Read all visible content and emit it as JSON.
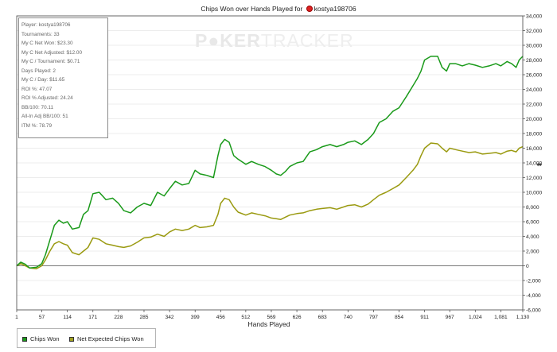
{
  "chart_data": {
    "type": "line",
    "title_prefix": "Chips Won over Hands Played for",
    "player_name": "kostya198706",
    "xlabel": "Hands Played",
    "ylabel": "",
    "xlim": [
      1,
      1130
    ],
    "ylim": [
      -6000,
      34000
    ],
    "x_ticks": [
      "1",
      "57",
      "114",
      "171",
      "228",
      "285",
      "342",
      "399",
      "456",
      "512",
      "569",
      "626",
      "683",
      "740",
      "797",
      "854",
      "911",
      "967",
      "1,024",
      "1,081",
      "1,130"
    ],
    "y_ticks": [
      "-6,000",
      "-4,000",
      "-2,000",
      "0",
      "2,000",
      "4,000",
      "6,000",
      "8,000",
      "10,000",
      "12,000",
      "14,000",
      "16,000",
      "18,000",
      "20,000",
      "22,000",
      "24,000",
      "26,000",
      "28,000",
      "30,000",
      "32,000",
      "34,000"
    ],
    "grid": "horizontal-only",
    "legend_position": "bottom-left",
    "series": [
      {
        "name": "Chips Won",
        "color": "#1a9a1a",
        "points": [
          [
            1,
            0
          ],
          [
            10,
            500
          ],
          [
            20,
            200
          ],
          [
            30,
            -300
          ],
          [
            45,
            -200
          ],
          [
            57,
            300
          ],
          [
            65,
            1500
          ],
          [
            75,
            3500
          ],
          [
            85,
            5500
          ],
          [
            95,
            6200
          ],
          [
            105,
            5800
          ],
          [
            114,
            6000
          ],
          [
            125,
            5000
          ],
          [
            140,
            5200
          ],
          [
            150,
            7000
          ],
          [
            160,
            7500
          ],
          [
            171,
            9800
          ],
          [
            185,
            10000
          ],
          [
            200,
            9000
          ],
          [
            215,
            9200
          ],
          [
            228,
            8500
          ],
          [
            240,
            7500
          ],
          [
            255,
            7200
          ],
          [
            270,
            8000
          ],
          [
            285,
            8500
          ],
          [
            300,
            8200
          ],
          [
            315,
            10000
          ],
          [
            330,
            9500
          ],
          [
            342,
            10500
          ],
          [
            355,
            11500
          ],
          [
            370,
            11000
          ],
          [
            385,
            11200
          ],
          [
            399,
            13000
          ],
          [
            410,
            12500
          ],
          [
            425,
            12300
          ],
          [
            440,
            12000
          ],
          [
            450,
            15000
          ],
          [
            456,
            16500
          ],
          [
            465,
            17200
          ],
          [
            475,
            16800
          ],
          [
            485,
            15000
          ],
          [
            495,
            14500
          ],
          [
            512,
            13800
          ],
          [
            525,
            14200
          ],
          [
            540,
            13800
          ],
          [
            555,
            13500
          ],
          [
            569,
            13000
          ],
          [
            580,
            12500
          ],
          [
            590,
            12300
          ],
          [
            600,
            12800
          ],
          [
            610,
            13500
          ],
          [
            626,
            14000
          ],
          [
            640,
            14200
          ],
          [
            655,
            15500
          ],
          [
            670,
            15800
          ],
          [
            683,
            16200
          ],
          [
            700,
            16500
          ],
          [
            715,
            16200
          ],
          [
            730,
            16500
          ],
          [
            740,
            16800
          ],
          [
            755,
            17000
          ],
          [
            770,
            16500
          ],
          [
            785,
            17200
          ],
          [
            797,
            18000
          ],
          [
            810,
            19500
          ],
          [
            825,
            20000
          ],
          [
            840,
            21000
          ],
          [
            854,
            21500
          ],
          [
            870,
            23000
          ],
          [
            885,
            24500
          ],
          [
            895,
            25500
          ],
          [
            903,
            26500
          ],
          [
            911,
            28000
          ],
          [
            925,
            28500
          ],
          [
            940,
            28500
          ],
          [
            950,
            27000
          ],
          [
            960,
            26500
          ],
          [
            967,
            27500
          ],
          [
            980,
            27500
          ],
          [
            995,
            27200
          ],
          [
            1010,
            27500
          ],
          [
            1024,
            27300
          ],
          [
            1040,
            27000
          ],
          [
            1055,
            27200
          ],
          [
            1070,
            27500
          ],
          [
            1081,
            27200
          ],
          [
            1095,
            27800
          ],
          [
            1105,
            27500
          ],
          [
            1115,
            27000
          ],
          [
            1122,
            28000
          ],
          [
            1130,
            28500
          ]
        ]
      },
      {
        "name": "Net Expected Chips Won",
        "color": "#9a9a10",
        "points": [
          [
            1,
            0
          ],
          [
            10,
            300
          ],
          [
            20,
            0
          ],
          [
            30,
            -300
          ],
          [
            45,
            -400
          ],
          [
            57,
            0
          ],
          [
            65,
            800
          ],
          [
            75,
            2000
          ],
          [
            85,
            3000
          ],
          [
            95,
            3300
          ],
          [
            105,
            3000
          ],
          [
            114,
            2800
          ],
          [
            125,
            1800
          ],
          [
            140,
            1500
          ],
          [
            150,
            2000
          ],
          [
            160,
            2500
          ],
          [
            171,
            3800
          ],
          [
            185,
            3600
          ],
          [
            200,
            3000
          ],
          [
            215,
            2800
          ],
          [
            228,
            2600
          ],
          [
            240,
            2500
          ],
          [
            255,
            2700
          ],
          [
            270,
            3200
          ],
          [
            285,
            3800
          ],
          [
            300,
            3900
          ],
          [
            315,
            4300
          ],
          [
            330,
            4000
          ],
          [
            342,
            4600
          ],
          [
            355,
            5000
          ],
          [
            370,
            4800
          ],
          [
            385,
            5000
          ],
          [
            399,
            5500
          ],
          [
            410,
            5200
          ],
          [
            425,
            5300
          ],
          [
            440,
            5500
          ],
          [
            450,
            7000
          ],
          [
            456,
            8500
          ],
          [
            465,
            9200
          ],
          [
            475,
            9000
          ],
          [
            485,
            8000
          ],
          [
            495,
            7300
          ],
          [
            512,
            6900
          ],
          [
            525,
            7200
          ],
          [
            540,
            7000
          ],
          [
            555,
            6800
          ],
          [
            569,
            6500
          ],
          [
            580,
            6400
          ],
          [
            590,
            6300
          ],
          [
            600,
            6600
          ],
          [
            610,
            6900
          ],
          [
            626,
            7100
          ],
          [
            640,
            7200
          ],
          [
            655,
            7500
          ],
          [
            670,
            7700
          ],
          [
            683,
            7800
          ],
          [
            700,
            7900
          ],
          [
            715,
            7700
          ],
          [
            730,
            8000
          ],
          [
            740,
            8200
          ],
          [
            755,
            8300
          ],
          [
            770,
            8000
          ],
          [
            785,
            8400
          ],
          [
            797,
            9000
          ],
          [
            810,
            9600
          ],
          [
            825,
            10000
          ],
          [
            840,
            10500
          ],
          [
            854,
            11000
          ],
          [
            870,
            12000
          ],
          [
            885,
            13000
          ],
          [
            895,
            13800
          ],
          [
            903,
            15000
          ],
          [
            911,
            16000
          ],
          [
            925,
            16700
          ],
          [
            940,
            16600
          ],
          [
            950,
            16000
          ],
          [
            960,
            15500
          ],
          [
            967,
            16000
          ],
          [
            980,
            15800
          ],
          [
            995,
            15600
          ],
          [
            1010,
            15400
          ],
          [
            1024,
            15500
          ],
          [
            1040,
            15200
          ],
          [
            1055,
            15300
          ],
          [
            1070,
            15400
          ],
          [
            1081,
            15200
          ],
          [
            1095,
            15600
          ],
          [
            1105,
            15700
          ],
          [
            1115,
            15500
          ],
          [
            1122,
            16000
          ],
          [
            1130,
            16200
          ]
        ]
      }
    ]
  },
  "stats": {
    "player": "Player: kostya198706",
    "tournaments": "Tournaments: 33",
    "net_won": "My C Net Won: $23.30",
    "net_won_adjusted": "My C Net Adjusted: $12.00",
    "per_tournament": "My C / Tournament: $0.71",
    "days_played": "Days Played: 2",
    "per_day": "My C / Day: $11.65",
    "roi": "ROI %: 47.07",
    "roi_adjusted": "ROI % Adjusted: 24.24",
    "bb100": "BB/100: 70.11",
    "allin_bb100": "All-In Adj BB/100: 51",
    "itm": "ITM %: 78.79"
  },
  "watermark": {
    "part1": "P",
    "part2": "KER",
    "part3": "TRACKER"
  },
  "legend": {
    "chips_won": "Chips Won",
    "net_expected": "Net Expected Chips Won",
    "chips_won_color": "#1a9a1a",
    "net_expected_color": "#a0a020"
  }
}
